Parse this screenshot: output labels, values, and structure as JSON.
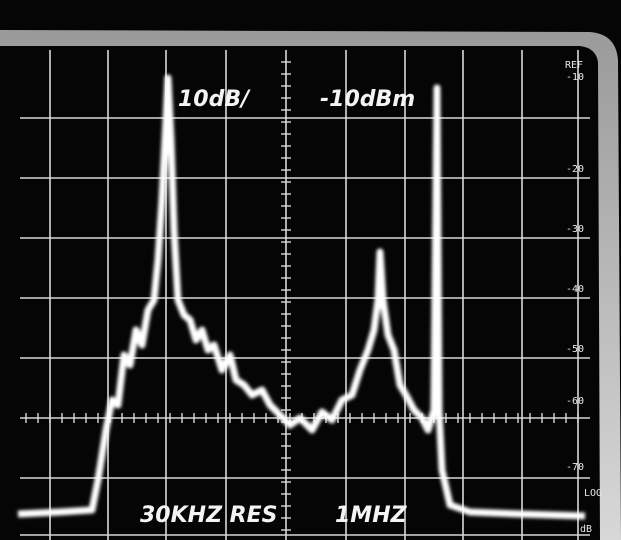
{
  "screen": {
    "scale_label": "10dB/",
    "reference_level": "-10dBm",
    "ref_header": "REF",
    "ref_marks": [
      "-10",
      "-20",
      "-30",
      "-40",
      "-50",
      "-60",
      "-70"
    ],
    "resolution": "30KHZ RES",
    "span": "1MHZ",
    "mode": "LOG",
    "unit": "dB"
  }
}
